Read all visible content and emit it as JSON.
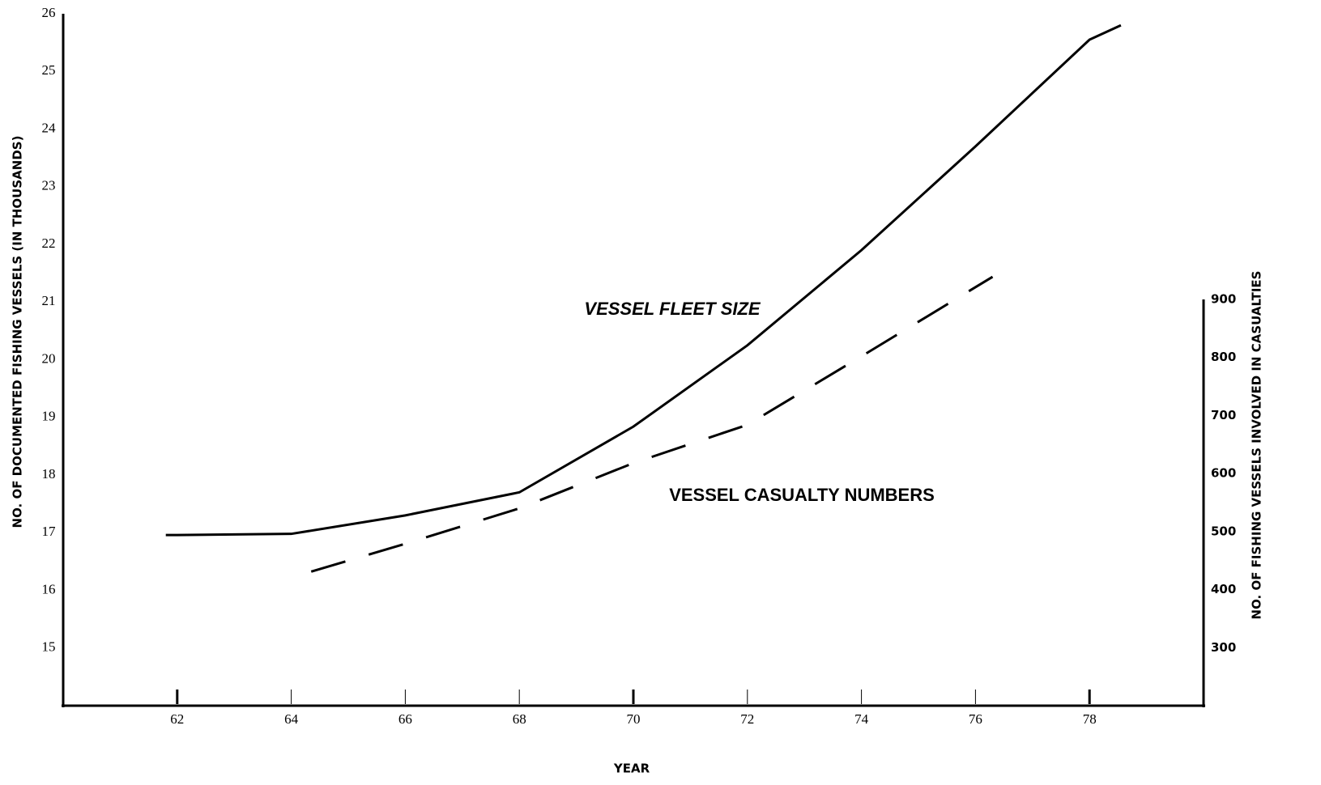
{
  "chart_data": {
    "type": "line",
    "x_label": "YEAR",
    "y_label": "NO. OF DOCUMENTED FISHING VESSELS (IN THOUSANDS)",
    "y2_label": "NO. OF FISHING VESSELS INVOLVED IN CASUALTIES",
    "annotations": [
      "VESSEL FLEET SIZE",
      "VESSEL CASUALTY NUMBERS"
    ],
    "xlim": [
      60,
      80
    ],
    "xticks": [
      62,
      64,
      66,
      68,
      70,
      72,
      74,
      76,
      78
    ],
    "ylim": [
      14,
      26
    ],
    "yticks": [
      15,
      16,
      17,
      18,
      19,
      20,
      21,
      22,
      23,
      24,
      25,
      26
    ],
    "y2lim": [
      200,
      900
    ],
    "y2ticks": [
      300,
      400,
      500,
      600,
      700,
      800,
      900
    ],
    "series": [
      {
        "name": "VESSEL FLEET SIZE",
        "color": "#000000",
        "style": "solid",
        "x": [
          61.8,
          62,
          64,
          66,
          68,
          70,
          72,
          74,
          76,
          78,
          78.55
        ],
        "values": [
          16.96,
          16.96,
          16.98,
          17.3,
          17.7,
          18.84,
          20.25,
          21.9,
          23.7,
          25.55,
          25.8
        ]
      },
      {
        "name": "VESSEL CASUALTY NUMBERS",
        "color": "#000000",
        "style": "dashed",
        "axis": "y2",
        "x": [
          64.35,
          66,
          68,
          70,
          72,
          74,
          76.3
        ],
        "values": [
          431,
          479,
          540,
          618,
          684,
          802,
          939
        ]
      }
    ]
  }
}
